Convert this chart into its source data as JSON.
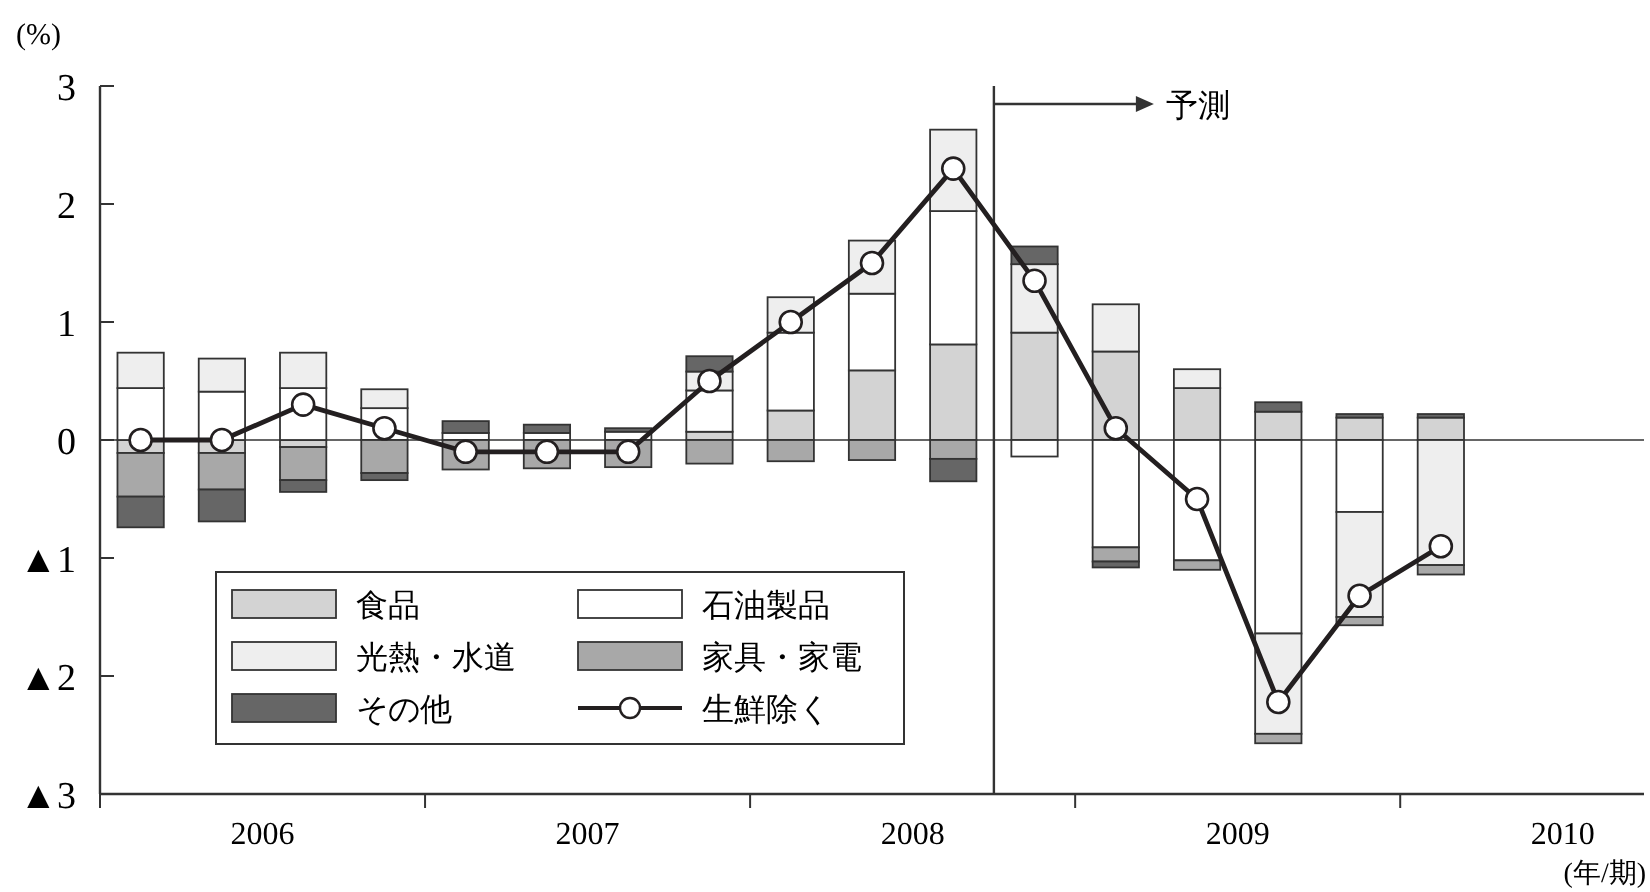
{
  "chart_data": {
    "type": "bar",
    "stacked": true,
    "ylabel": "(%)",
    "xlabel": "(年/期)",
    "x": [
      2006.125,
      2006.375,
      2006.625,
      2006.875,
      2007.125,
      2007.375,
      2007.625,
      2007.875,
      2008.125,
      2008.375,
      2008.625,
      2008.875,
      2009.125,
      2009.375,
      2009.625,
      2009.875,
      2010.125
    ],
    "xlim": [
      2006,
      2010.75
    ],
    "xticks": [
      {
        "value": 2006,
        "label": null
      },
      {
        "value": 2006.5,
        "label": "2006"
      },
      {
        "value": 2007,
        "label": null
      },
      {
        "value": 2007.5,
        "label": "2007"
      },
      {
        "value": 2008,
        "label": null
      },
      {
        "value": 2008.5,
        "label": "2008"
      },
      {
        "value": 2009,
        "label": null
      },
      {
        "value": 2009.5,
        "label": "2009"
      },
      {
        "value": 2010,
        "label": null
      },
      {
        "value": 2010.5,
        "label": "2010"
      }
    ],
    "ylim": [
      -3,
      3
    ],
    "yticks": [
      {
        "value": -3,
        "label": "▲3"
      },
      {
        "value": -2,
        "label": "▲2"
      },
      {
        "value": -1,
        "label": "▲1"
      },
      0,
      1,
      2,
      3
    ],
    "series": [
      {
        "name": "食品",
        "color": "#d3d3d3",
        "values": [
          -0.11,
          -0.11,
          -0.06,
          null,
          null,
          null,
          null,
          0.07,
          0.25,
          0.59,
          0.81,
          0.91,
          0.75,
          0.44,
          0.24,
          0.19,
          0.19
        ]
      },
      {
        "name": "石油製品",
        "color": "#ffffff",
        "values": [
          0.44,
          0.41,
          0.44,
          0.27,
          0.06,
          0.06,
          0.07,
          0.35,
          0.66,
          0.65,
          1.13,
          -0.14,
          -0.91,
          -1.02,
          -1.64,
          -0.61,
          null
        ]
      },
      {
        "name": "光熱・水道",
        "color": "#eeeeee",
        "values": [
          0.3,
          0.28,
          0.3,
          0.16,
          null,
          null,
          null,
          0.16,
          0.3,
          0.45,
          0.69,
          0.58,
          0.4,
          0.16,
          -0.85,
          -0.89,
          -1.06
        ]
      },
      {
        "name": "家具・家電",
        "color": "#a8a8a8",
        "values": [
          -0.37,
          -0.31,
          -0.28,
          -0.28,
          -0.25,
          -0.24,
          -0.23,
          -0.2,
          -0.18,
          -0.17,
          -0.16,
          null,
          -0.12,
          -0.08,
          -0.08,
          -0.07,
          -0.08
        ]
      },
      {
        "name": "その他",
        "color": "#666666",
        "values": [
          -0.26,
          -0.27,
          -0.1,
          -0.06,
          0.1,
          0.07,
          0.03,
          0.13,
          null,
          null,
          -0.19,
          0.15,
          -0.05,
          null,
          0.08,
          0.03,
          0.03
        ]
      },
      {
        "name": "生鮮除く",
        "type": "line",
        "color": "#231f20",
        "marker": "circle",
        "values": [
          0,
          0,
          0.3,
          0.1,
          -0.1,
          -0.1,
          -0.1,
          0.5,
          1.0,
          1.5,
          2.3,
          1.35,
          0.1,
          -0.5,
          -2.22,
          -1.32,
          -0.9
        ]
      }
    ],
    "ref_lines": [
      {
        "axis": "x",
        "value": 2008.75,
        "label": "予測"
      }
    ],
    "legend": "bottom left"
  }
}
